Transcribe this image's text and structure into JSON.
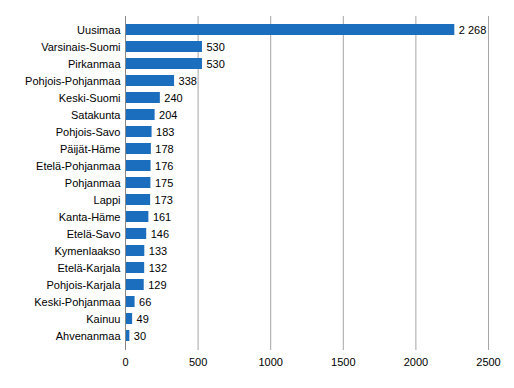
{
  "chart_data": {
    "type": "bar",
    "orientation": "horizontal",
    "categories": [
      "Uusimaa",
      "Varsinais-Suomi",
      "Pirkanmaa",
      "Pohjois-Pohjanmaa",
      "Keski-Suomi",
      "Satakunta",
      "Pohjois-Savo",
      "Päijät-Häme",
      "Etelä-Pohjanmaa",
      "Pohjanmaa",
      "Lappi",
      "Kanta-Häme",
      "Etelä-Savo",
      "Kymenlaakso",
      "Etelä-Karjala",
      "Pohjois-Karjala",
      "Keski-Pohjanmaa",
      "Kainuu",
      "Ahvenanmaa"
    ],
    "values": [
      2268,
      530,
      530,
      338,
      240,
      204,
      183,
      178,
      176,
      175,
      173,
      161,
      146,
      133,
      132,
      129,
      66,
      49,
      30
    ],
    "value_labels": [
      "2 268",
      "530",
      "530",
      "338",
      "240",
      "204",
      "183",
      "178",
      "176",
      "175",
      "173",
      "161",
      "146",
      "133",
      "132",
      "129",
      "66",
      "49",
      "30"
    ],
    "color": "#1a6ebd",
    "xlim": [
      0,
      2500
    ],
    "xticks": [
      0,
      500,
      1000,
      1500,
      2000,
      2500
    ],
    "grid": true,
    "data_labels": true
  }
}
